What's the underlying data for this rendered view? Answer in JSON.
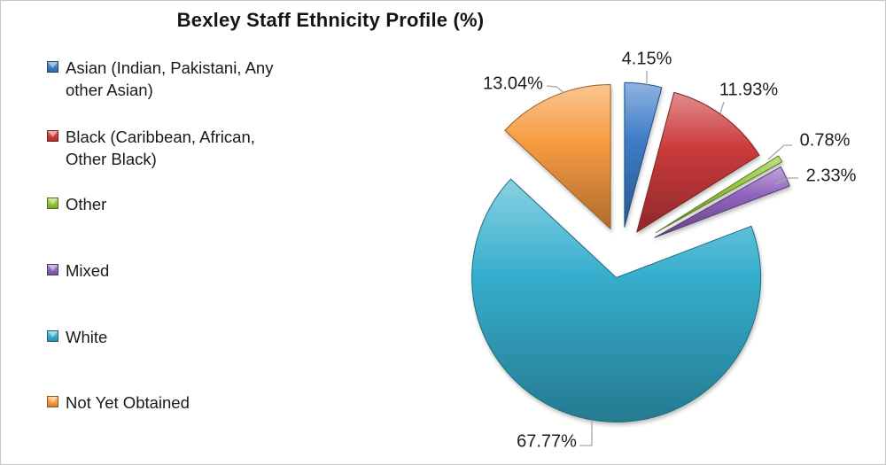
{
  "title": "Bexley Staff Ethnicity Profile (%)",
  "chart_data": {
    "type": "pie",
    "title": "Bexley Staff Ethnicity Profile (%)",
    "unit": "%",
    "style": "exploded pie with 3D bevel, data labels outside with leader lines",
    "legend_position": "left",
    "start_angle_deg": 0,
    "direction": "clockwise",
    "slices": [
      {
        "label": "Asian (Indian, Pakistani, Any\nother Asian)",
        "value": 4.15,
        "pct_label": "4.15%",
        "color": "#3e7cc7"
      },
      {
        "label": "Black (Caribbean, African,\nOther Black)",
        "value": 11.93,
        "pct_label": "11.93%",
        "color": "#cb3a3c"
      },
      {
        "label": "Other",
        "value": 0.78,
        "pct_label": "0.78%",
        "color": "#93c63c"
      },
      {
        "label": "Mixed",
        "value": 2.33,
        "pct_label": "2.33%",
        "color": "#8f63bc"
      },
      {
        "label": "White",
        "value": 67.77,
        "pct_label": "67.77%",
        "color": "#35aecd"
      },
      {
        "label": "Not Yet Obtained",
        "value": 13.04,
        "pct_label": "13.04%",
        "color": "#f79b41"
      }
    ]
  }
}
